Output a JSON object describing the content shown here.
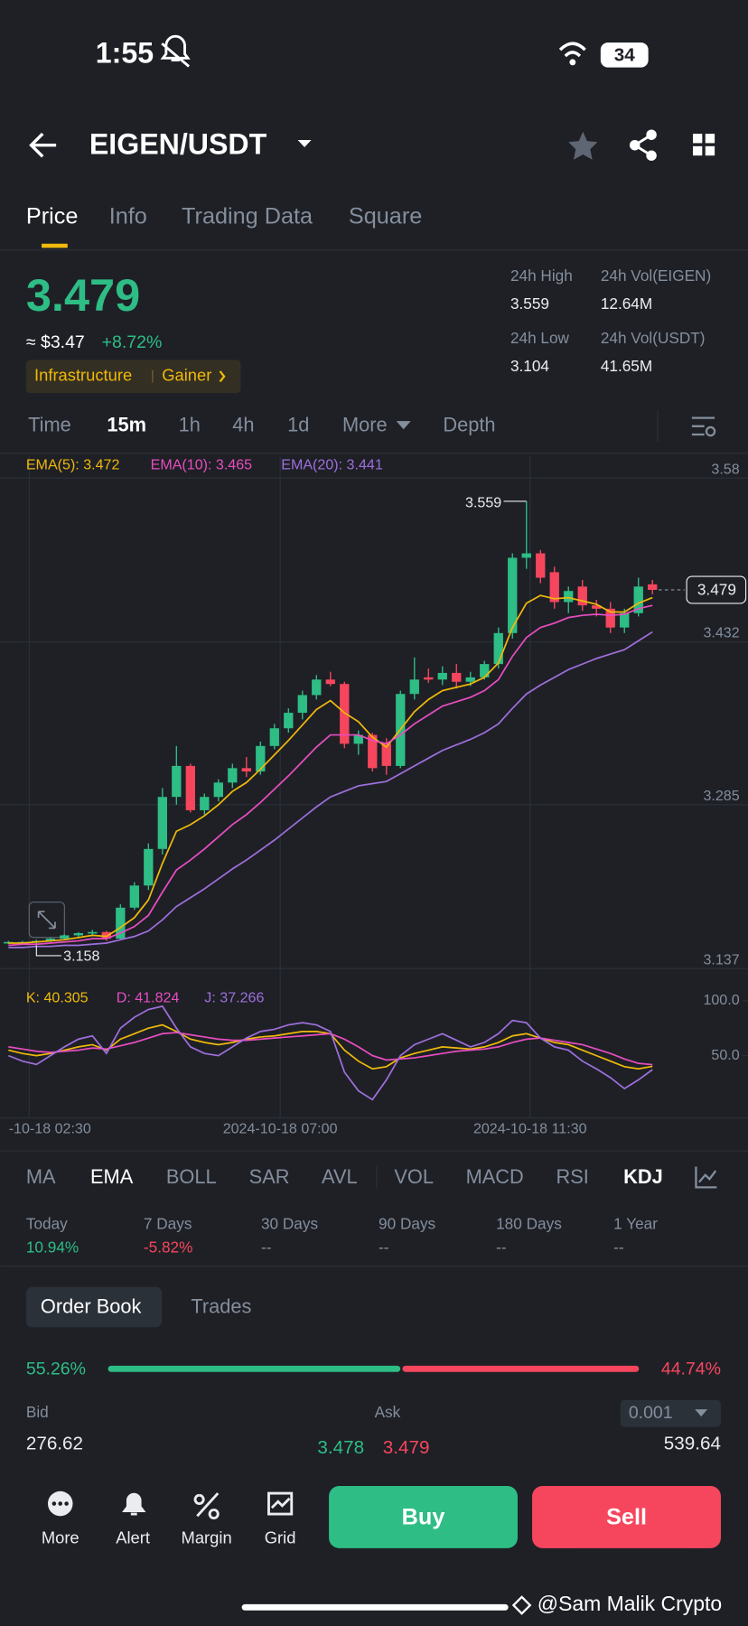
{
  "status": {
    "time": "1:55",
    "battery": "34"
  },
  "header": {
    "pair": "EIGEN/USDT"
  },
  "tabs": [
    "Price",
    "Info",
    "Trading Data",
    "Square"
  ],
  "price": {
    "last": "3.479",
    "usd": "≈ $3.47",
    "change": "+8.72%",
    "tag": "Infrastructure",
    "tag2": "Gainer"
  },
  "stats": [
    [
      "24h High",
      "3.559"
    ],
    [
      "24h Vol(EIGEN)",
      "12.64M"
    ],
    [
      "24h Low",
      "3.104"
    ],
    [
      "24h Vol(USDT)",
      "41.65M"
    ]
  ],
  "intervals": [
    "Time",
    "15m",
    "1h",
    "4h",
    "1d",
    "More",
    "Depth"
  ],
  "chart_data": {
    "type": "candlestick",
    "ylim": [
      3.137,
      3.58
    ],
    "yticks": [
      3.137,
      3.285,
      3.432,
      3.58
    ],
    "x_labels": [
      "-10-18 02:30",
      "2024-10-18 07:00",
      "2024-10-18 11:30"
    ],
    "candles": [
      [
        3.16,
        3.162,
        3.159,
        3.161
      ],
      [
        3.161,
        3.162,
        3.16,
        3.161
      ],
      [
        3.161,
        3.163,
        3.158,
        3.162
      ],
      [
        3.162,
        3.165,
        3.161,
        3.164
      ],
      [
        3.164,
        3.168,
        3.163,
        3.167
      ],
      [
        3.167,
        3.17,
        3.165,
        3.169
      ],
      [
        3.169,
        3.172,
        3.166,
        3.17
      ],
      [
        3.17,
        3.171,
        3.162,
        3.164
      ],
      [
        3.164,
        3.195,
        3.163,
        3.192
      ],
      [
        3.192,
        3.215,
        3.19,
        3.212
      ],
      [
        3.212,
        3.25,
        3.208,
        3.245
      ],
      [
        3.245,
        3.3,
        3.24,
        3.292
      ],
      [
        3.292,
        3.338,
        3.285,
        3.32
      ],
      [
        3.32,
        3.322,
        3.278,
        3.28
      ],
      [
        3.28,
        3.295,
        3.276,
        3.292
      ],
      [
        3.292,
        3.308,
        3.288,
        3.305
      ],
      [
        3.305,
        3.322,
        3.3,
        3.318
      ],
      [
        3.318,
        3.328,
        3.31,
        3.315
      ],
      [
        3.315,
        3.342,
        3.312,
        3.338
      ],
      [
        3.338,
        3.358,
        3.335,
        3.354
      ],
      [
        3.354,
        3.372,
        3.35,
        3.368
      ],
      [
        3.368,
        3.388,
        3.362,
        3.384
      ],
      [
        3.384,
        3.402,
        3.38,
        3.398
      ],
      [
        3.398,
        3.405,
        3.392,
        3.394
      ],
      [
        3.394,
        3.396,
        3.336,
        3.34
      ],
      [
        3.34,
        3.352,
        3.33,
        3.348
      ],
      [
        3.348,
        3.35,
        3.315,
        3.318
      ],
      [
        3.34,
        3.345,
        3.312,
        3.32
      ],
      [
        3.32,
        3.388,
        3.318,
        3.385
      ],
      [
        3.385,
        3.418,
        3.38,
        3.398
      ],
      [
        3.4,
        3.408,
        3.395,
        3.398
      ],
      [
        3.398,
        3.41,
        3.393,
        3.404
      ],
      [
        3.404,
        3.412,
        3.39,
        3.396
      ],
      [
        3.396,
        3.405,
        3.392,
        3.4
      ],
      [
        3.4,
        3.415,
        3.398,
        3.412
      ],
      [
        3.412,
        3.445,
        3.408,
        3.44
      ],
      [
        3.44,
        3.512,
        3.435,
        3.508
      ],
      [
        3.508,
        3.559,
        3.498,
        3.512
      ],
      [
        3.512,
        3.515,
        3.485,
        3.49
      ],
      [
        3.495,
        3.5,
        3.462,
        3.468
      ],
      [
        3.468,
        3.482,
        3.458,
        3.478
      ],
      [
        3.482,
        3.488,
        3.46,
        3.465
      ],
      [
        3.465,
        3.47,
        3.455,
        3.462
      ],
      [
        3.462,
        3.468,
        3.44,
        3.445
      ],
      [
        3.445,
        3.462,
        3.44,
        3.458
      ],
      [
        3.458,
        3.49,
        3.455,
        3.482
      ],
      [
        3.484,
        3.488,
        3.475,
        3.479
      ]
    ],
    "up_color": "#2ebd85",
    "down_color": "#f6465d",
    "series": [
      {
        "name": "EMA(5): 3.472",
        "color": "#f0b90b",
        "values": [
          3.16,
          3.16,
          3.161,
          3.162,
          3.163,
          3.165,
          3.167,
          3.166,
          3.174,
          3.183,
          3.199,
          3.232,
          3.261,
          3.267,
          3.275,
          3.285,
          3.297,
          3.305,
          3.317,
          3.33,
          3.343,
          3.357,
          3.371,
          3.379,
          3.368,
          3.36,
          3.346,
          3.337,
          3.353,
          3.369,
          3.38,
          3.388,
          3.391,
          3.394,
          3.4,
          3.413,
          3.445,
          3.467,
          3.474,
          3.471,
          3.472,
          3.469,
          3.466,
          3.459,
          3.459,
          3.467,
          3.472
        ]
      },
      {
        "name": "EMA(10): 3.465",
        "color": "#e84dc0",
        "values": [
          3.158,
          3.159,
          3.159,
          3.16,
          3.161,
          3.162,
          3.164,
          3.164,
          3.169,
          3.175,
          3.185,
          3.206,
          3.226,
          3.235,
          3.245,
          3.256,
          3.267,
          3.276,
          3.287,
          3.299,
          3.311,
          3.324,
          3.337,
          3.348,
          3.348,
          3.348,
          3.343,
          3.34,
          3.348,
          3.358,
          3.366,
          3.374,
          3.378,
          3.382,
          3.388,
          3.398,
          3.419,
          3.436,
          3.445,
          3.449,
          3.454,
          3.456,
          3.457,
          3.456,
          3.457,
          3.462,
          3.465
        ]
      },
      {
        "name": "EMA(20): 3.441",
        "color": "#9f6fdc",
        "values": [
          3.156,
          3.156,
          3.157,
          3.157,
          3.158,
          3.158,
          3.159,
          3.16,
          3.163,
          3.166,
          3.171,
          3.181,
          3.193,
          3.201,
          3.209,
          3.218,
          3.227,
          3.235,
          3.244,
          3.253,
          3.263,
          3.273,
          3.283,
          3.292,
          3.297,
          3.302,
          3.304,
          3.306,
          3.313,
          3.32,
          3.327,
          3.334,
          3.339,
          3.344,
          3.35,
          3.358,
          3.372,
          3.385,
          3.393,
          3.4,
          3.407,
          3.412,
          3.417,
          3.421,
          3.425,
          3.433,
          3.441
        ]
      }
    ],
    "indicator": {
      "ylim": [
        0,
        100
      ],
      "yticks": [
        {
          "value": 50,
          "label": "50.0"
        },
        {
          "value": 100,
          "label": "100.0"
        }
      ],
      "series": [
        {
          "name": "K: 40.305",
          "color": "#f0b90b",
          "values": [
            55,
            52,
            50,
            52,
            55,
            58,
            60,
            55,
            65,
            70,
            75,
            78,
            72,
            65,
            62,
            60,
            62,
            65,
            67,
            68,
            70,
            72,
            72,
            70,
            55,
            45,
            38,
            40,
            48,
            52,
            55,
            58,
            57,
            56,
            58,
            62,
            68,
            70,
            66,
            62,
            60,
            55,
            50,
            45,
            40,
            38,
            40.305
          ]
        },
        {
          "name": "D: 41.824",
          "color": "#e84dc0",
          "values": [
            58,
            56,
            54,
            53,
            54,
            55,
            57,
            56,
            59,
            62,
            66,
            70,
            71,
            69,
            67,
            65,
            64,
            64,
            65,
            66,
            67,
            68,
            69,
            70,
            65,
            58,
            50,
            46,
            47,
            48,
            50,
            52,
            54,
            55,
            56,
            58,
            62,
            65,
            66,
            64,
            62,
            60,
            56,
            52,
            47,
            43,
            41.824
          ]
        },
        {
          "name": "J: 37.266",
          "color": "#9f6fdc",
          "values": [
            50,
            45,
            42,
            50,
            58,
            65,
            68,
            52,
            75,
            85,
            92,
            95,
            75,
            58,
            52,
            50,
            58,
            66,
            72,
            74,
            78,
            80,
            78,
            72,
            35,
            18,
            10,
            28,
            50,
            60,
            65,
            70,
            64,
            58,
            62,
            70,
            82,
            80,
            66,
            58,
            55,
            45,
            38,
            30,
            20,
            28,
            37.266
          ]
        }
      ]
    }
  },
  "indicators": [
    "MA",
    "EMA",
    "BOLL",
    "SAR",
    "AVL",
    "VOL",
    "MACD",
    "RSI",
    "KDJ"
  ],
  "performance": [
    [
      "Today",
      "10.94%"
    ],
    [
      "7 Days",
      "-5.82%"
    ],
    [
      "30 Days",
      "--"
    ],
    [
      "90 Days",
      "--"
    ],
    [
      "180 Days",
      "--"
    ],
    [
      "1 Year",
      "--"
    ]
  ],
  "book": {
    "tabs": [
      "Order Book",
      "Trades"
    ],
    "bid_pct": 55.26,
    "ask_pct": 44.74,
    "bid_pct_label": "55.26%",
    "ask_pct_label": "44.74%",
    "bid": "Bid",
    "ask": "Ask",
    "step": "0.001",
    "bid_qty": "276.62",
    "bid_price": "3.478",
    "ask_price": "3.479",
    "ask_qty": "539.64"
  },
  "bottom": {
    "actions": [
      "More",
      "Alert",
      "Margin",
      "Grid"
    ],
    "buy": "Buy",
    "sell": "Sell"
  },
  "watermark": "@Sam Malik Crypto"
}
